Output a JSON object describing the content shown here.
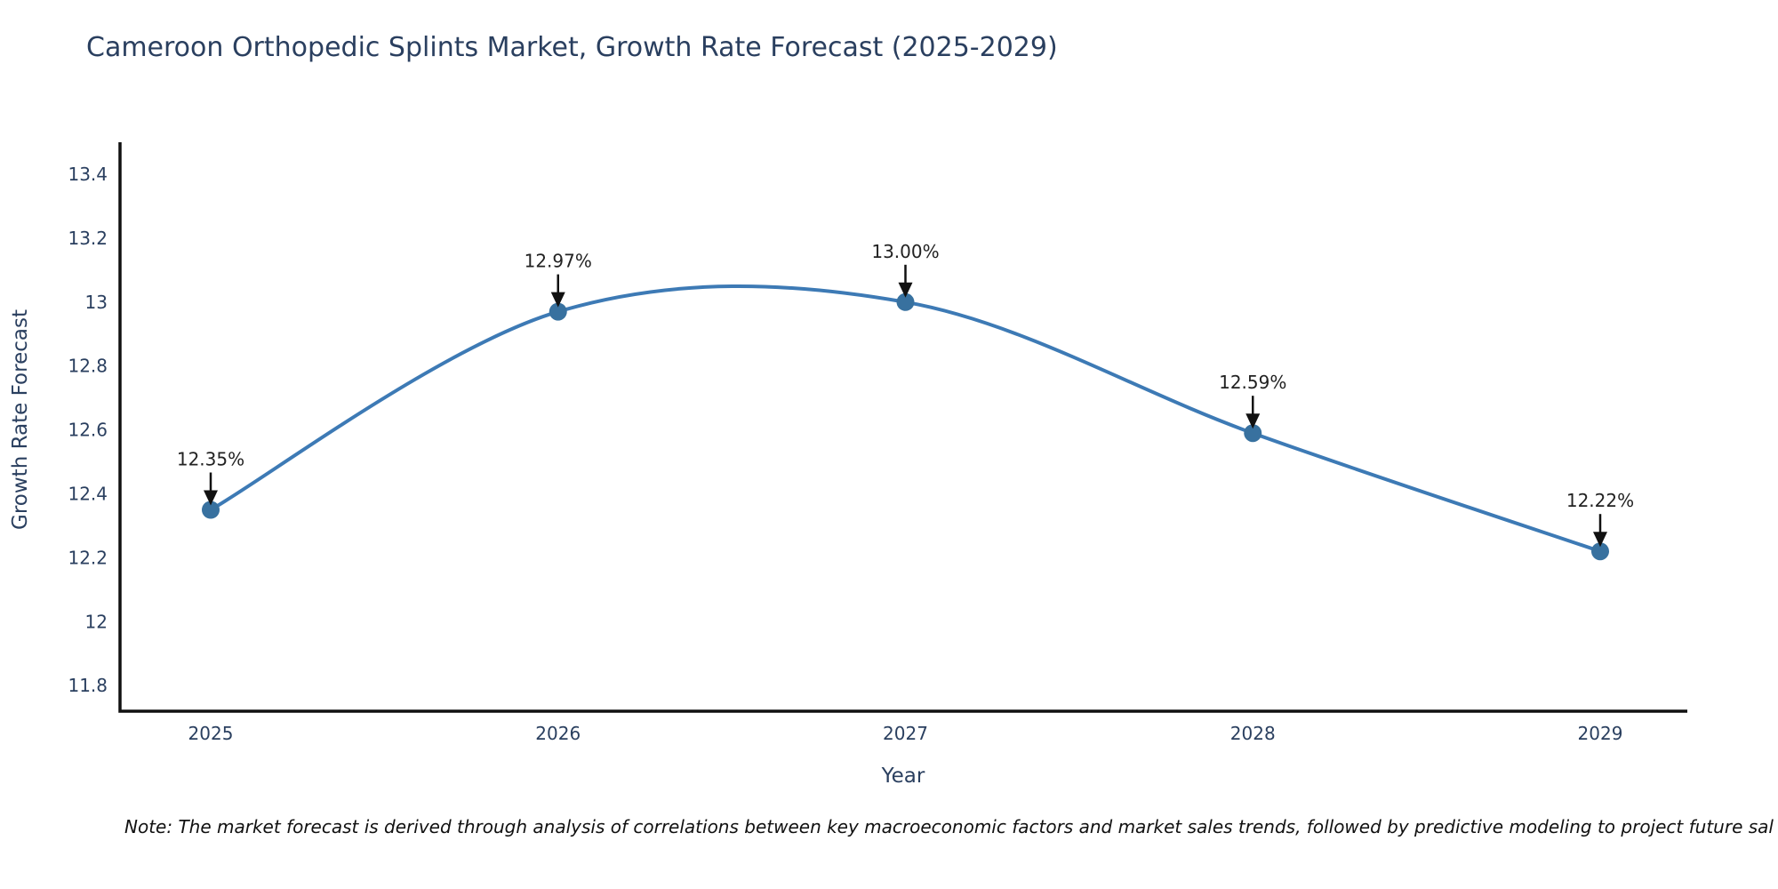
{
  "chart_data": {
    "type": "line",
    "title": "Cameroon Orthopedic Splints Market, Growth Rate Forecast (2025-2029)",
    "xlabel": "Year",
    "ylabel": "Growth Rate Forecast",
    "x": [
      "2025",
      "2026",
      "2027",
      "2028",
      "2029"
    ],
    "values": [
      12.35,
      12.97,
      13.0,
      12.59,
      12.22
    ],
    "point_labels": [
      "12.35%",
      "12.97%",
      "13.00%",
      "12.59%",
      "12.22%"
    ],
    "ylim": [
      11.72,
      13.5
    ],
    "y_ticks": [
      "13.4",
      "13.2",
      "13",
      "12.8",
      "12.6",
      "12.4",
      "12.2",
      "12",
      "11.8"
    ],
    "line_shape": "spline",
    "grid": false,
    "legend": "none",
    "colors": {
      "line": "#3d7ab5",
      "marker": "#38719f",
      "axis": "#111111",
      "tick_text": "#2a3f5f",
      "annotation_text": "#222222",
      "arrow": "#111111",
      "title_text": "#2a3f5f"
    }
  },
  "footer": {
    "note": "Note: The market forecast is derived through analysis of correlations between key macroeconomic factors and market sales trends, followed by predictive modeling to project future sal"
  }
}
